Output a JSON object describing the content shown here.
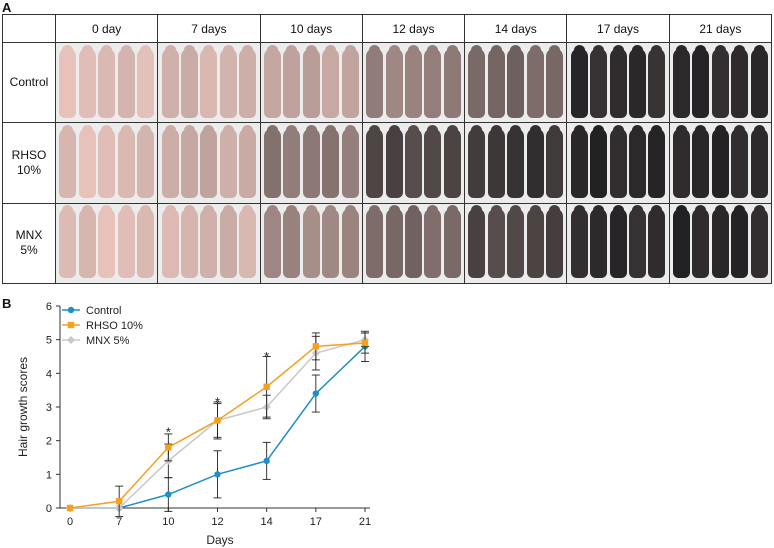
{
  "panel_a": {
    "letter": "A",
    "columns": [
      "0 day",
      "7 days",
      "10 days",
      "12 days",
      "14 days",
      "17 days",
      "21 days"
    ],
    "rows": [
      {
        "label": [
          "Control"
        ],
        "shades": [
          0.05,
          0.1,
          0.2,
          0.4,
          0.55,
          0.9,
          0.92
        ]
      },
      {
        "label": [
          "RHSO",
          "10%"
        ],
        "shades": [
          0.05,
          0.15,
          0.45,
          0.75,
          0.85,
          0.92,
          0.93
        ]
      },
      {
        "label": [
          "MNX",
          "5%"
        ],
        "shades": [
          0.05,
          0.1,
          0.35,
          0.55,
          0.75,
          0.9,
          0.93
        ]
      }
    ],
    "skin_color": "#e8c4bd",
    "fur_color": "#1c1c1e"
  },
  "panel_b": {
    "letter": "B",
    "chart_data": {
      "type": "line",
      "x": [
        0,
        7,
        10,
        12,
        14,
        17,
        21
      ],
      "xticklabels": [
        "0",
        "7",
        "10",
        "12",
        "14",
        "17",
        "21"
      ],
      "xlabel": "Days",
      "ylabel": "Hair growth scores",
      "ylim": [
        0,
        6
      ],
      "yticks": [
        0,
        1,
        2,
        3,
        4,
        5,
        6
      ],
      "grid": false,
      "legend": "top-left",
      "series": [
        {
          "name": "Control",
          "color": "#1e90c8",
          "marker": "circle",
          "values": [
            0,
            0,
            0.4,
            1.0,
            1.4,
            3.4,
            4.8
          ],
          "errors": [
            0,
            0,
            0.5,
            0.7,
            0.55,
            0.55,
            0.45
          ]
        },
        {
          "name": "RHSO 10%",
          "color": "#f5a01e",
          "marker": "square",
          "values": [
            0,
            0.2,
            1.8,
            2.6,
            3.6,
            4.8,
            4.9
          ],
          "errors": [
            0,
            0.45,
            0.4,
            0.5,
            0.9,
            0.4,
            0.3
          ]
        },
        {
          "name": "MNX 5%",
          "color": "#c8c8c8",
          "marker": "diamond",
          "values": [
            0,
            0,
            1.4,
            2.6,
            3.0,
            4.6,
            5.0
          ],
          "errors": [
            0,
            0,
            0.5,
            0.55,
            0.35,
            0.5,
            0.2
          ]
        }
      ],
      "annotations": [
        {
          "text": "*",
          "x": 10,
          "y": 2.3
        },
        {
          "text": "*",
          "x": 12,
          "y": 3.2
        },
        {
          "text": "*",
          "x": 14,
          "y": 4.55
        }
      ]
    }
  }
}
